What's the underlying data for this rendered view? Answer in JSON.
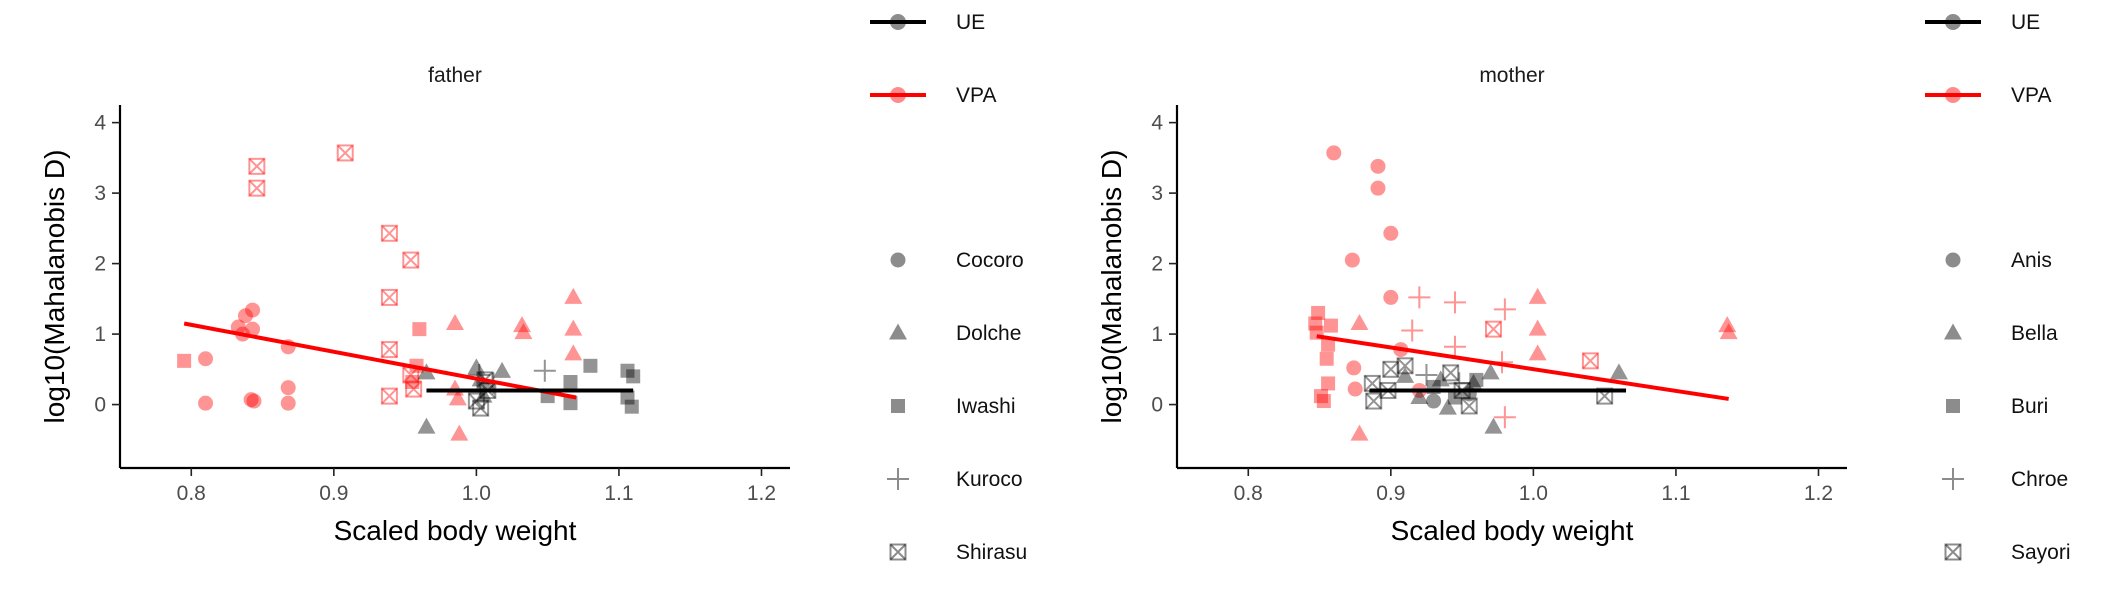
{
  "chart_data": [
    {
      "type": "scatter",
      "title": "father",
      "xlabel": "Scaled body weight",
      "ylabel": "log10(Mahalanobis D)",
      "xlim": [
        0.75,
        1.22
      ],
      "ylim": [
        -0.9,
        4.25
      ],
      "x_ticks": [
        "0.8",
        "0.9",
        "1.0",
        "1.1",
        "1.2"
      ],
      "y_ticks": [
        "0",
        "1",
        "2",
        "3",
        "4"
      ],
      "groups": [
        {
          "name": "UE",
          "color": "#000000"
        },
        {
          "name": "VPA",
          "color": "#ff0000"
        }
      ],
      "individuals": [
        {
          "name": "Cocoro",
          "shape": "circle"
        },
        {
          "name": "Dolche",
          "shape": "triangle"
        },
        {
          "name": "Iwashi",
          "shape": "square"
        },
        {
          "name": "Kuroco",
          "shape": "plus"
        },
        {
          "name": "Shirasu",
          "shape": "boxx"
        }
      ],
      "fit_lines": [
        {
          "group": "VPA",
          "x": [
            0.795,
            1.07
          ],
          "y": [
            1.15,
            0.1
          ]
        },
        {
          "group": "UE",
          "x": [
            0.965,
            1.11
          ],
          "y": [
            0.2,
            0.2
          ]
        }
      ],
      "points": [
        {
          "x": 0.795,
          "y": 0.62,
          "group": "VPA",
          "id": "Iwashi"
        },
        {
          "x": 0.81,
          "y": 0.65,
          "group": "VPA",
          "id": "Cocoro"
        },
        {
          "x": 0.81,
          "y": 0.02,
          "group": "VPA",
          "id": "Cocoro"
        },
        {
          "x": 0.833,
          "y": 1.1,
          "group": "VPA",
          "id": "Cocoro"
        },
        {
          "x": 0.836,
          "y": 1.0,
          "group": "VPA",
          "id": "Cocoro"
        },
        {
          "x": 0.838,
          "y": 1.26,
          "group": "VPA",
          "id": "Cocoro"
        },
        {
          "x": 0.843,
          "y": 1.34,
          "group": "VPA",
          "id": "Cocoro"
        },
        {
          "x": 0.843,
          "y": 1.07,
          "group": "VPA",
          "id": "Cocoro"
        },
        {
          "x": 0.842,
          "y": 0.07,
          "group": "VPA",
          "id": "Cocoro"
        },
        {
          "x": 0.844,
          "y": 0.05,
          "group": "VPA",
          "id": "Cocoro"
        },
        {
          "x": 0.868,
          "y": 0.82,
          "group": "VPA",
          "id": "Cocoro"
        },
        {
          "x": 0.868,
          "y": 0.24,
          "group": "VPA",
          "id": "Cocoro"
        },
        {
          "x": 0.868,
          "y": 0.02,
          "group": "VPA",
          "id": "Cocoro"
        },
        {
          "x": 0.846,
          "y": 3.38,
          "group": "VPA",
          "id": "Shirasu"
        },
        {
          "x": 0.846,
          "y": 3.07,
          "group": "VPA",
          "id": "Shirasu"
        },
        {
          "x": 0.908,
          "y": 3.57,
          "group": "VPA",
          "id": "Shirasu"
        },
        {
          "x": 0.939,
          "y": 2.43,
          "group": "VPA",
          "id": "Shirasu"
        },
        {
          "x": 0.939,
          "y": 1.52,
          "group": "VPA",
          "id": "Shirasu"
        },
        {
          "x": 0.939,
          "y": 0.78,
          "group": "VPA",
          "id": "Shirasu"
        },
        {
          "x": 0.939,
          "y": 0.12,
          "group": "VPA",
          "id": "Shirasu"
        },
        {
          "x": 0.954,
          "y": 2.05,
          "group": "VPA",
          "id": "Shirasu"
        },
        {
          "x": 0.954,
          "y": 0.42,
          "group": "VPA",
          "id": "Shirasu"
        },
        {
          "x": 0.956,
          "y": 0.22,
          "group": "VPA",
          "id": "Shirasu"
        },
        {
          "x": 0.958,
          "y": 0.55,
          "group": "VPA",
          "id": "Iwashi"
        },
        {
          "x": 0.96,
          "y": 1.07,
          "group": "VPA",
          "id": "Iwashi"
        },
        {
          "x": 0.955,
          "y": 0.32,
          "group": "VPA",
          "id": "Iwashi"
        },
        {
          "x": 0.985,
          "y": 1.15,
          "group": "VPA",
          "id": "Dolche"
        },
        {
          "x": 0.985,
          "y": 0.22,
          "group": "VPA",
          "id": "Dolche"
        },
        {
          "x": 0.987,
          "y": 0.08,
          "group": "VPA",
          "id": "Dolche"
        },
        {
          "x": 0.988,
          "y": -0.42,
          "group": "VPA",
          "id": "Dolche"
        },
        {
          "x": 1.032,
          "y": 1.12,
          "group": "VPA",
          "id": "Dolche"
        },
        {
          "x": 1.033,
          "y": 1.02,
          "group": "VPA",
          "id": "Dolche"
        },
        {
          "x": 1.068,
          "y": 1.52,
          "group": "VPA",
          "id": "Dolche"
        },
        {
          "x": 1.068,
          "y": 1.07,
          "group": "VPA",
          "id": "Dolche"
        },
        {
          "x": 1.068,
          "y": 0.72,
          "group": "VPA",
          "id": "Dolche"
        },
        {
          "x": 0.965,
          "y": 0.45,
          "group": "UE",
          "id": "Dolche"
        },
        {
          "x": 0.965,
          "y": -0.32,
          "group": "UE",
          "id": "Dolche"
        },
        {
          "x": 1.0,
          "y": 0.52,
          "group": "UE",
          "id": "Dolche"
        },
        {
          "x": 1.003,
          "y": 0.35,
          "group": "UE",
          "id": "Dolche"
        },
        {
          "x": 1.005,
          "y": 0.12,
          "group": "UE",
          "id": "Dolche"
        },
        {
          "x": 1.018,
          "y": 0.47,
          "group": "UE",
          "id": "Dolche"
        },
        {
          "x": 1.0,
          "y": 0.05,
          "group": "UE",
          "id": "Shirasu"
        },
        {
          "x": 1.003,
          "y": -0.05,
          "group": "UE",
          "id": "Shirasu"
        },
        {
          "x": 1.006,
          "y": 0.35,
          "group": "UE",
          "id": "Shirasu"
        },
        {
          "x": 1.008,
          "y": 0.2,
          "group": "UE",
          "id": "Shirasu"
        },
        {
          "x": 1.002,
          "y": 0.42,
          "group": "UE",
          "id": "Kuroco"
        },
        {
          "x": 1.012,
          "y": 0.3,
          "group": "UE",
          "id": "Kuroco"
        },
        {
          "x": 1.048,
          "y": 0.48,
          "group": "UE",
          "id": "Kuroco"
        },
        {
          "x": 1.05,
          "y": 0.12,
          "group": "UE",
          "id": "Iwashi"
        },
        {
          "x": 1.066,
          "y": 0.32,
          "group": "UE",
          "id": "Iwashi"
        },
        {
          "x": 1.066,
          "y": 0.02,
          "group": "UE",
          "id": "Iwashi"
        },
        {
          "x": 1.08,
          "y": 0.55,
          "group": "UE",
          "id": "Iwashi"
        },
        {
          "x": 1.106,
          "y": 0.48,
          "group": "UE",
          "id": "Iwashi"
        },
        {
          "x": 1.106,
          "y": 0.1,
          "group": "UE",
          "id": "Iwashi"
        },
        {
          "x": 1.109,
          "y": -0.03,
          "group": "UE",
          "id": "Iwashi"
        },
        {
          "x": 1.11,
          "y": 0.4,
          "group": "UE",
          "id": "Iwashi"
        }
      ]
    },
    {
      "type": "scatter",
      "title": "mother",
      "xlabel": "Scaled body weight",
      "ylabel": "log10(Mahalanobis D)",
      "xlim": [
        0.75,
        1.22
      ],
      "ylim": [
        -0.9,
        4.25
      ],
      "x_ticks": [
        "0.8",
        "0.9",
        "1.0",
        "1.1",
        "1.2"
      ],
      "y_ticks": [
        "0",
        "1",
        "2",
        "3",
        "4"
      ],
      "groups": [
        {
          "name": "UE",
          "color": "#000000"
        },
        {
          "name": "VPA",
          "color": "#ff0000"
        }
      ],
      "individuals": [
        {
          "name": "Anis",
          "shape": "circle"
        },
        {
          "name": "Bella",
          "shape": "triangle"
        },
        {
          "name": "Buri",
          "shape": "square"
        },
        {
          "name": "Chroe",
          "shape": "plus"
        },
        {
          "name": "Sayori",
          "shape": "boxx"
        }
      ],
      "fit_lines": [
        {
          "group": "VPA",
          "x": [
            0.848,
            1.137
          ],
          "y": [
            0.97,
            0.08
          ]
        },
        {
          "group": "UE",
          "x": [
            0.885,
            1.065
          ],
          "y": [
            0.2,
            0.2
          ]
        }
      ],
      "points": [
        {
          "x": 0.849,
          "y": 1.3,
          "group": "VPA",
          "id": "Buri"
        },
        {
          "x": 0.847,
          "y": 1.15,
          "group": "VPA",
          "id": "Buri"
        },
        {
          "x": 0.848,
          "y": 1.02,
          "group": "VPA",
          "id": "Buri"
        },
        {
          "x": 0.851,
          "y": 0.12,
          "group": "VPA",
          "id": "Buri"
        },
        {
          "x": 0.853,
          "y": 0.05,
          "group": "VPA",
          "id": "Buri"
        },
        {
          "x": 0.855,
          "y": 0.65,
          "group": "VPA",
          "id": "Buri"
        },
        {
          "x": 0.856,
          "y": 0.85,
          "group": "VPA",
          "id": "Buri"
        },
        {
          "x": 0.858,
          "y": 1.12,
          "group": "VPA",
          "id": "Buri"
        },
        {
          "x": 0.856,
          "y": 0.3,
          "group": "VPA",
          "id": "Buri"
        },
        {
          "x": 0.86,
          "y": 3.57,
          "group": "VPA",
          "id": "Anis"
        },
        {
          "x": 0.873,
          "y": 2.05,
          "group": "VPA",
          "id": "Anis"
        },
        {
          "x": 0.874,
          "y": 0.52,
          "group": "VPA",
          "id": "Anis"
        },
        {
          "x": 0.875,
          "y": 0.22,
          "group": "VPA",
          "id": "Anis"
        },
        {
          "x": 0.891,
          "y": 3.38,
          "group": "VPA",
          "id": "Anis"
        },
        {
          "x": 0.891,
          "y": 3.07,
          "group": "VPA",
          "id": "Anis"
        },
        {
          "x": 0.9,
          "y": 2.43,
          "group": "VPA",
          "id": "Anis"
        },
        {
          "x": 0.9,
          "y": 1.52,
          "group": "VPA",
          "id": "Anis"
        },
        {
          "x": 0.907,
          "y": 0.78,
          "group": "VPA",
          "id": "Anis"
        },
        {
          "x": 0.92,
          "y": 0.2,
          "group": "VPA",
          "id": "Anis"
        },
        {
          "x": 0.878,
          "y": 1.15,
          "group": "VPA",
          "id": "Bella"
        },
        {
          "x": 0.878,
          "y": -0.42,
          "group": "VPA",
          "id": "Bella"
        },
        {
          "x": 0.92,
          "y": 1.52,
          "group": "VPA",
          "id": "Chroe"
        },
        {
          "x": 0.915,
          "y": 1.05,
          "group": "VPA",
          "id": "Chroe"
        },
        {
          "x": 0.945,
          "y": 1.45,
          "group": "VPA",
          "id": "Chroe"
        },
        {
          "x": 0.945,
          "y": 0.82,
          "group": "VPA",
          "id": "Chroe"
        },
        {
          "x": 0.98,
          "y": 1.35,
          "group": "VPA",
          "id": "Chroe"
        },
        {
          "x": 0.978,
          "y": 0.6,
          "group": "VPA",
          "id": "Chroe"
        },
        {
          "x": 0.98,
          "y": -0.18,
          "group": "VPA",
          "id": "Chroe"
        },
        {
          "x": 0.972,
          "y": 1.07,
          "group": "VPA",
          "id": "Sayori"
        },
        {
          "x": 1.04,
          "y": 0.62,
          "group": "VPA",
          "id": "Sayori"
        },
        {
          "x": 1.003,
          "y": 1.52,
          "group": "VPA",
          "id": "Bella"
        },
        {
          "x": 1.003,
          "y": 1.07,
          "group": "VPA",
          "id": "Bella"
        },
        {
          "x": 1.003,
          "y": 0.72,
          "group": "VPA",
          "id": "Bella"
        },
        {
          "x": 1.136,
          "y": 1.12,
          "group": "VPA",
          "id": "Bella"
        },
        {
          "x": 1.137,
          "y": 1.02,
          "group": "VPA",
          "id": "Bella"
        },
        {
          "x": 0.887,
          "y": 0.3,
          "group": "UE",
          "id": "Sayori"
        },
        {
          "x": 0.888,
          "y": 0.05,
          "group": "UE",
          "id": "Sayori"
        },
        {
          "x": 0.898,
          "y": 0.2,
          "group": "UE",
          "id": "Sayori"
        },
        {
          "x": 0.9,
          "y": 0.5,
          "group": "UE",
          "id": "Sayori"
        },
        {
          "x": 0.91,
          "y": 0.55,
          "group": "UE",
          "id": "Sayori"
        },
        {
          "x": 0.942,
          "y": 0.45,
          "group": "UE",
          "id": "Sayori"
        },
        {
          "x": 0.95,
          "y": 0.2,
          "group": "UE",
          "id": "Sayori"
        },
        {
          "x": 0.955,
          "y": -0.02,
          "group": "UE",
          "id": "Sayori"
        },
        {
          "x": 1.05,
          "y": 0.12,
          "group": "UE",
          "id": "Sayori"
        },
        {
          "x": 0.91,
          "y": 0.4,
          "group": "UE",
          "id": "Bella"
        },
        {
          "x": 0.92,
          "y": 0.1,
          "group": "UE",
          "id": "Bella"
        },
        {
          "x": 0.935,
          "y": 0.35,
          "group": "UE",
          "id": "Bella"
        },
        {
          "x": 0.94,
          "y": -0.05,
          "group": "UE",
          "id": "Bella"
        },
        {
          "x": 0.958,
          "y": 0.3,
          "group": "UE",
          "id": "Bella"
        },
        {
          "x": 0.97,
          "y": 0.45,
          "group": "UE",
          "id": "Bella"
        },
        {
          "x": 0.972,
          "y": -0.32,
          "group": "UE",
          "id": "Bella"
        },
        {
          "x": 1.06,
          "y": 0.45,
          "group": "UE",
          "id": "Bella"
        },
        {
          "x": 0.93,
          "y": 0.25,
          "group": "UE",
          "id": "Buri"
        },
        {
          "x": 0.945,
          "y": 0.1,
          "group": "UE",
          "id": "Buri"
        },
        {
          "x": 0.96,
          "y": 0.35,
          "group": "UE",
          "id": "Buri"
        },
        {
          "x": 0.925,
          "y": 0.42,
          "group": "UE",
          "id": "Chroe"
        },
        {
          "x": 0.948,
          "y": 0.3,
          "group": "UE",
          "id": "Chroe"
        },
        {
          "x": 0.93,
          "y": 0.05,
          "group": "UE",
          "id": "Anis"
        },
        {
          "x": 0.955,
          "y": 0.15,
          "group": "UE",
          "id": "Anis"
        }
      ]
    }
  ]
}
